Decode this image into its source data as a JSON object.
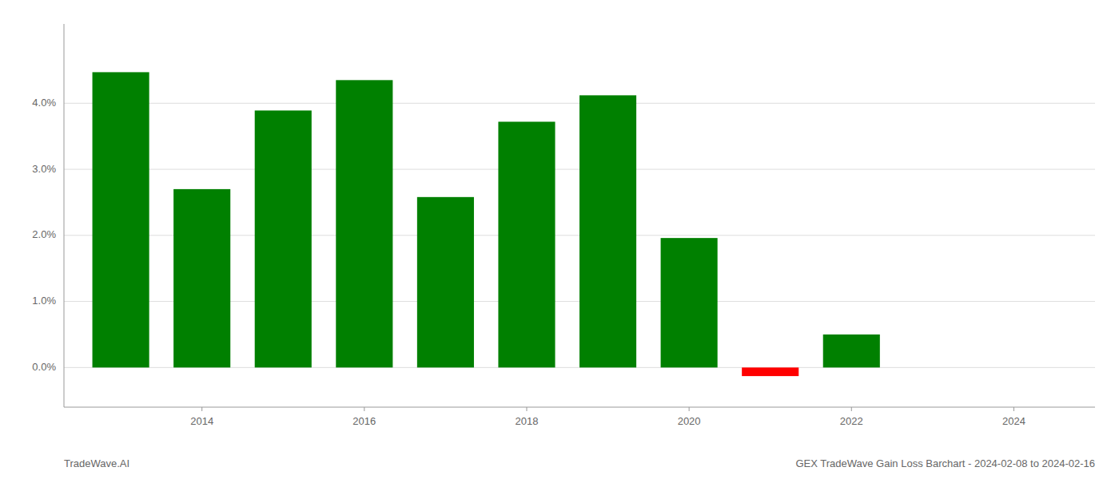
{
  "chart_data": {
    "type": "bar",
    "title": "GEX TradeWave Gain Loss Barchart - 2024-02-08 to 2024-02-16",
    "annotations": [
      "TradeWave.AI"
    ],
    "x": [
      2013,
      2014,
      2015,
      2016,
      2017,
      2018,
      2019,
      2020,
      2021,
      2022,
      2023
    ],
    "values": [
      0.0447,
      0.027,
      0.0389,
      0.0435,
      0.0258,
      0.0372,
      0.0412,
      0.0196,
      -0.0013,
      0.005,
      0.0
    ],
    "colors": [
      "#008000",
      "#008000",
      "#008000",
      "#008000",
      "#008000",
      "#008000",
      "#008000",
      "#008000",
      "#ff0000",
      "#008000",
      "#008000"
    ],
    "xlim": [
      2012.3,
      2025.0
    ],
    "xticks": [
      2014,
      2016,
      2018,
      2020,
      2022,
      2024
    ],
    "ylim": [
      -0.006,
      0.052
    ],
    "yticks": [
      {
        "value": 0.0,
        "label": "0.0%"
      },
      {
        "value": 0.01,
        "label": "1.0%"
      },
      {
        "value": 0.02,
        "label": "2.0%"
      },
      {
        "value": 0.03,
        "label": "3.0%"
      },
      {
        "value": 0.04,
        "label": "4.0%"
      }
    ],
    "grid": true
  }
}
